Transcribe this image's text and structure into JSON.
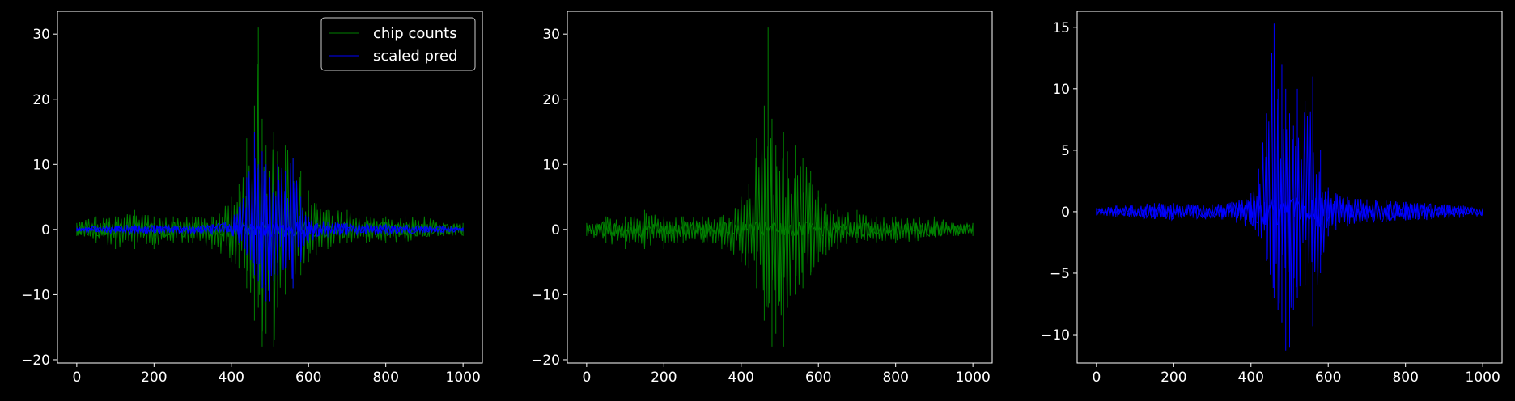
{
  "chart_data": [
    {
      "type": "line",
      "xlim": [
        -50,
        1050
      ],
      "ylim": [
        -20.5,
        33.5
      ],
      "xticks": [
        0,
        200,
        400,
        600,
        800,
        1000
      ],
      "yticks": [
        -20,
        -10,
        0,
        10,
        20,
        30
      ],
      "x_tick_labels": [
        "0",
        "200",
        "400",
        "600",
        "800",
        "1000"
      ],
      "y_tick_labels": [
        "−20",
        "−10",
        "0",
        "10",
        "20",
        "30"
      ],
      "grid": false,
      "legend_position": "top-right",
      "series": [
        {
          "name": "chip counts",
          "color": "#008000",
          "x": [
            0,
            50,
            100,
            150,
            200,
            250,
            300,
            350,
            400,
            420,
            440,
            460,
            470,
            480,
            490,
            500,
            510,
            520,
            540,
            560,
            580,
            600,
            620,
            650,
            700,
            750,
            800,
            850,
            900,
            950,
            1000
          ],
          "upper": [
            1,
            2,
            2,
            3,
            2,
            2,
            2,
            2,
            5,
            7,
            14,
            19,
            31,
            17,
            13,
            9,
            15,
            12,
            13,
            11,
            9,
            6,
            4,
            3,
            3,
            2,
            2,
            2,
            2,
            1,
            1
          ],
          "lower": [
            -1,
            -2,
            -3,
            -3,
            -3,
            -2,
            -2,
            -3,
            -5,
            -6,
            -9,
            -14,
            -12,
            -18,
            -16,
            -11,
            -18,
            -12,
            -10,
            -9,
            -7,
            -5,
            -4,
            -3,
            -2,
            -2,
            -2,
            -2,
            -1,
            -1,
            -1
          ]
        },
        {
          "name": "scaled pred",
          "color": "#0000ff",
          "x": [
            0,
            50,
            100,
            150,
            200,
            250,
            300,
            350,
            400,
            420,
            440,
            460,
            470,
            480,
            490,
            500,
            510,
            520,
            540,
            560,
            580,
            600,
            620,
            650,
            700,
            750,
            800,
            850,
            900,
            950,
            1000
          ],
          "upper": [
            0.3,
            0.5,
            0.6,
            0.7,
            0.7,
            0.6,
            0.6,
            0.8,
            1.5,
            3.5,
            8,
            15,
            10,
            12,
            10,
            8,
            7,
            10,
            9,
            11,
            5,
            2,
            1.5,
            1.2,
            1,
            0.9,
            0.8,
            0.7,
            0.6,
            0.5,
            0.3
          ],
          "lower": [
            -0.3,
            -0.4,
            -0.5,
            -0.6,
            -0.6,
            -0.5,
            -0.5,
            -0.5,
            -1,
            -2,
            -4,
            -7,
            -8,
            -9,
            -11,
            -11,
            -8,
            -7,
            -6,
            -9,
            -5,
            -2,
            -1.5,
            -1.2,
            -0.8,
            -0.8,
            -0.7,
            -0.6,
            -0.5,
            -0.4,
            -0.3
          ]
        }
      ],
      "legend": [
        "chip counts",
        "scaled pred"
      ]
    },
    {
      "type": "line",
      "xlim": [
        -50,
        1050
      ],
      "ylim": [
        -20.5,
        33.5
      ],
      "xticks": [
        0,
        200,
        400,
        600,
        800,
        1000
      ],
      "yticks": [
        -20,
        -10,
        0,
        10,
        20,
        30
      ],
      "x_tick_labels": [
        "0",
        "200",
        "400",
        "600",
        "800",
        "1000"
      ],
      "y_tick_labels": [
        "−20",
        "−10",
        "0",
        "10",
        "20",
        "30"
      ],
      "grid": false,
      "series": [
        {
          "color": "#008000",
          "x": [
            0,
            50,
            100,
            150,
            200,
            250,
            300,
            350,
            400,
            420,
            440,
            460,
            470,
            480,
            490,
            500,
            510,
            520,
            540,
            560,
            580,
            600,
            620,
            650,
            700,
            750,
            800,
            850,
            900,
            950,
            1000
          ],
          "upper": [
            1,
            2,
            2,
            3,
            2,
            2,
            2,
            2,
            5,
            7,
            14,
            19,
            31,
            17,
            13,
            9,
            15,
            12,
            13,
            11,
            9,
            6,
            4,
            3,
            3,
            2,
            2,
            2,
            2,
            1,
            1
          ],
          "lower": [
            -1,
            -2,
            -3,
            -3,
            -3,
            -2,
            -2,
            -3,
            -5,
            -6,
            -9,
            -14,
            -12,
            -18,
            -16,
            -11,
            -18,
            -12,
            -10,
            -9,
            -7,
            -5,
            -4,
            -3,
            -2,
            -2,
            -2,
            -2,
            -1,
            -1,
            -1
          ]
        }
      ]
    },
    {
      "type": "line",
      "xlim": [
        -50,
        1050
      ],
      "ylim": [
        -12.3,
        16.3
      ],
      "xticks": [
        0,
        200,
        400,
        600,
        800,
        1000
      ],
      "yticks": [
        -10,
        -5,
        0,
        5,
        10,
        15
      ],
      "x_tick_labels": [
        "0",
        "200",
        "400",
        "600",
        "800",
        "1000"
      ],
      "y_tick_labels": [
        "−10",
        "−5",
        "0",
        "5",
        "10",
        "15"
      ],
      "grid": false,
      "series": [
        {
          "color": "#0000ff",
          "x": [
            0,
            50,
            100,
            150,
            200,
            250,
            300,
            350,
            400,
            420,
            440,
            460,
            470,
            480,
            490,
            500,
            510,
            520,
            540,
            560,
            580,
            600,
            620,
            650,
            700,
            750,
            800,
            850,
            900,
            950,
            1000
          ],
          "upper": [
            0.3,
            0.5,
            0.6,
            0.7,
            0.7,
            0.6,
            0.6,
            0.8,
            1.5,
            3.5,
            8,
            15.3,
            10,
            12,
            10,
            8,
            7,
            10,
            9,
            11,
            5,
            2,
            1.5,
            1.2,
            1,
            0.9,
            0.8,
            0.7,
            0.6,
            0.5,
            0.3
          ],
          "lower": [
            -0.3,
            -0.4,
            -0.5,
            -0.6,
            -0.6,
            -0.5,
            -0.5,
            -0.5,
            -1,
            -2,
            -4,
            -7,
            -8,
            -9,
            -11.3,
            -11,
            -8,
            -7,
            -6,
            -9.3,
            -5,
            -2,
            -1.5,
            -1.2,
            -0.8,
            -0.8,
            -0.7,
            -0.6,
            -0.5,
            -0.4,
            -0.3
          ]
        }
      ]
    }
  ]
}
